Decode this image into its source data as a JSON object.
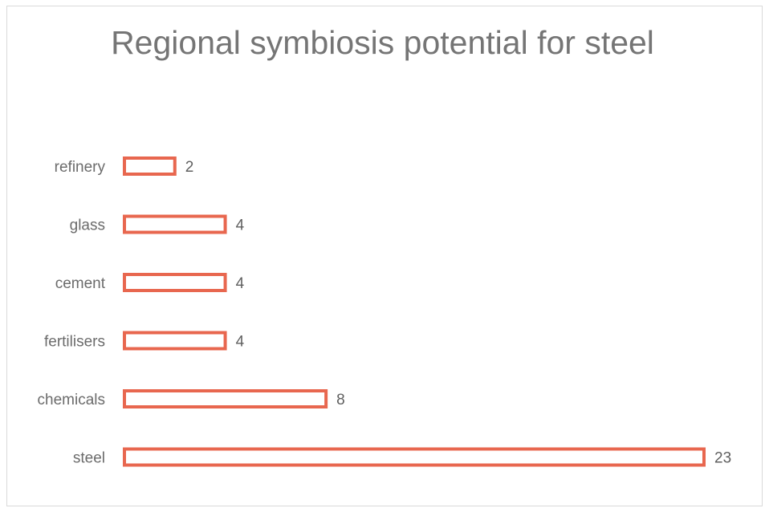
{
  "chart_data": {
    "type": "bar",
    "orientation": "horizontal",
    "title": "Regional symbiosis potential for steel",
    "categories": [
      "refinery",
      "glass",
      "cement",
      "fertilisers",
      "chemicals",
      "steel"
    ],
    "values": [
      2,
      4,
      4,
      4,
      8,
      23
    ],
    "xlabel": "",
    "ylabel": "",
    "xlim": [
      0,
      23
    ],
    "grid": false,
    "legend": "none",
    "data_labels": true,
    "colors": {
      "bar_outline": "#e8674f",
      "bar_fill": "#ffffff",
      "text": "#6b6b6b"
    }
  }
}
